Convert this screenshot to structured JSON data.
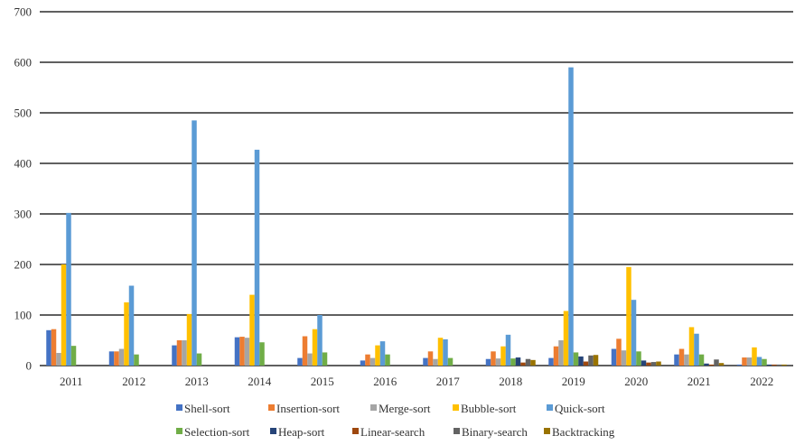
{
  "chart_data": {
    "type": "bar",
    "title": "",
    "xlabel": "",
    "ylabel": "",
    "ylim": [
      0,
      700
    ],
    "yticks": [
      0,
      100,
      200,
      300,
      400,
      500,
      600,
      700
    ],
    "grid": "horizontal",
    "legend_position": "bottom",
    "categories": [
      "2011",
      "2012",
      "2013",
      "2014",
      "2015",
      "2016",
      "2017",
      "2018",
      "2019",
      "2020",
      "2021",
      "2022"
    ],
    "series": [
      {
        "name": "Shell-sort",
        "color": "#4472C4",
        "values": [
          70,
          28,
          40,
          56,
          15,
          10,
          15,
          13,
          15,
          33,
          22,
          2
        ]
      },
      {
        "name": "Insertion-sort",
        "color": "#ED7D31",
        "values": [
          72,
          28,
          50,
          57,
          58,
          22,
          28,
          28,
          38,
          53,
          33,
          16
        ]
      },
      {
        "name": "Merge-sort",
        "color": "#A5A5A5",
        "values": [
          25,
          33,
          50,
          55,
          24,
          15,
          13,
          14,
          50,
          30,
          22,
          16
        ]
      },
      {
        "name": "Bubble-sort",
        "color": "#FFC000",
        "values": [
          200,
          125,
          102,
          140,
          72,
          40,
          55,
          38,
          108,
          195,
          76,
          36
        ]
      },
      {
        "name": "Quick-sort",
        "color": "#5B9BD5",
        "values": [
          302,
          158,
          485,
          427,
          100,
          48,
          52,
          61,
          590,
          130,
          63,
          17
        ]
      },
      {
        "name": "Selection-sort",
        "color": "#70AD47",
        "values": [
          39,
          22,
          24,
          46,
          26,
          22,
          15,
          14,
          26,
          28,
          22,
          13
        ]
      },
      {
        "name": "Heap-sort",
        "color": "#264478",
        "values": [
          0,
          0,
          0,
          0,
          0,
          0,
          0,
          16,
          18,
          10,
          4,
          2
        ]
      },
      {
        "name": "Linear-search",
        "color": "#9E480E",
        "values": [
          0,
          0,
          0,
          0,
          0,
          0,
          0,
          6,
          8,
          6,
          2,
          2
        ]
      },
      {
        "name": "Binary-search",
        "color": "#636363",
        "values": [
          0,
          0,
          0,
          0,
          0,
          0,
          0,
          13,
          20,
          7,
          12,
          2
        ]
      },
      {
        "name": "Backtracking",
        "color": "#997300",
        "values": [
          0,
          0,
          0,
          0,
          0,
          0,
          0,
          11,
          21,
          8,
          5,
          2
        ]
      }
    ]
  }
}
